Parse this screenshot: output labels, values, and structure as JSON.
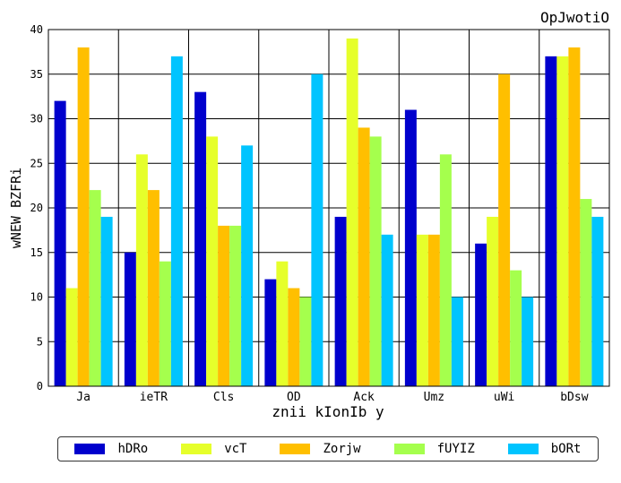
{
  "chart_data": {
    "type": "bar",
    "title": "OpJwotiO",
    "xlabel": "znii kIonIb y",
    "ylabel": "wNEW BZFRi",
    "ylim": [
      0,
      40
    ],
    "yticks": [
      0,
      5,
      10,
      15,
      20,
      25,
      30,
      35,
      40
    ],
    "grid": true,
    "legend_position": "bottom",
    "categories": [
      "Ja",
      "ieTR",
      "Cls",
      "OD",
      "Ack",
      "Umz",
      "uWi",
      "bDsw"
    ],
    "series": [
      {
        "name": "hDRo",
        "color": "#0000cd",
        "values": [
          32,
          15,
          33,
          12,
          19,
          31,
          16,
          37
        ]
      },
      {
        "name": "vcT",
        "color": "#e6ff2b",
        "values": [
          11,
          26,
          28,
          14,
          39,
          17,
          19,
          37
        ]
      },
      {
        "name": "Zorjw",
        "color": "#ffbf00",
        "values": [
          38,
          22,
          18,
          11,
          29,
          17,
          35,
          38
        ]
      },
      {
        "name": "fUYIZ",
        "color": "#a5ff4d",
        "values": [
          22,
          14,
          18,
          10,
          28,
          26,
          13,
          21
        ]
      },
      {
        "name": "bORt",
        "color": "#00c4ff",
        "values": [
          19,
          37,
          27,
          35,
          17,
          10,
          10,
          19
        ]
      }
    ]
  }
}
